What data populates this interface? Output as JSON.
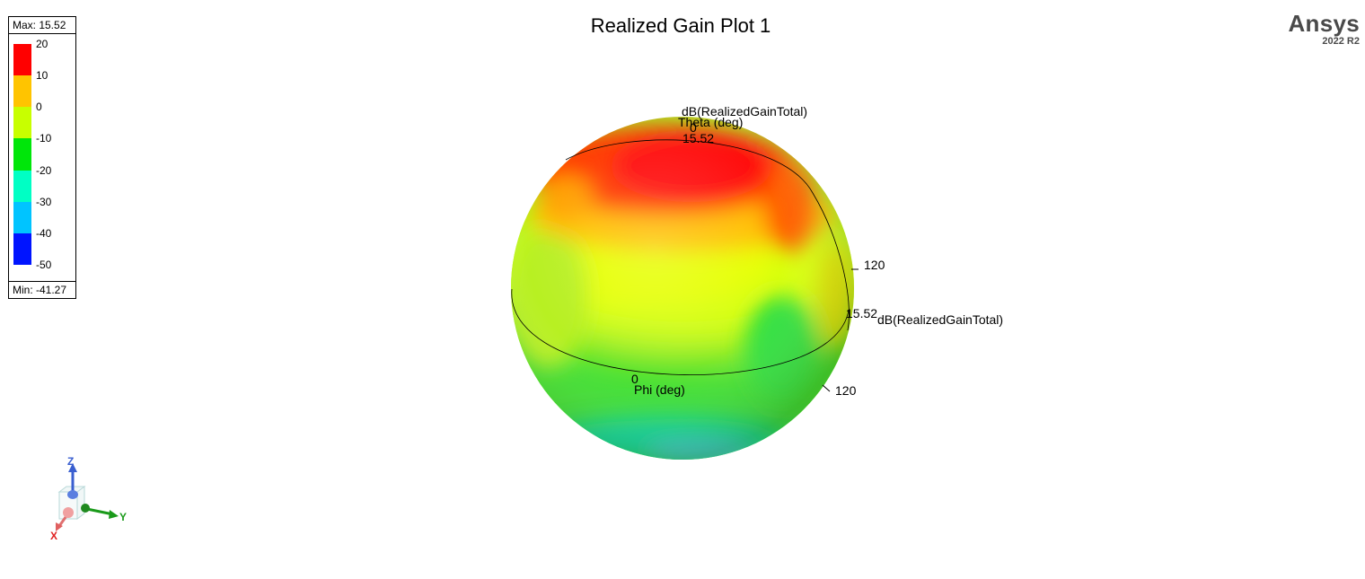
{
  "header": {
    "title": "Realized Gain Plot 1",
    "brand_name": "Ansys",
    "brand_version": "2022 R2"
  },
  "legend": {
    "max_label": "Max: 15.52",
    "min_label": "Min: -41.27",
    "ticks": [
      "20",
      "10",
      "0",
      "-10",
      "-20",
      "-30",
      "-40",
      "-50"
    ],
    "colors": [
      "#ff0000",
      "#ffc400",
      "#c8ff00",
      "#00e60a",
      "#00ffc4",
      "#00c4ff",
      "#0014ff"
    ]
  },
  "chart_data": {
    "type": "heatmap",
    "title": "Realized Gain Plot 1",
    "quantity": "dB(RealizedGainTotal)",
    "max": 15.52,
    "min": -41.27,
    "colorbar_ticks": [
      20,
      10,
      0,
      -10,
      -20,
      -30,
      -40,
      -50
    ],
    "axis_labels": {
      "theta": "Theta (deg)",
      "phi": "Phi (deg)",
      "radial": "dB(RealizedGainTotal)"
    },
    "annotations": {
      "theta_top_value": "0",
      "top_radius_value": "15.52",
      "side_radius_value": "15.52",
      "phi_zero": "0",
      "theta_120": "120",
      "phi_120": "120"
    }
  },
  "axes_triad": {
    "z_label": "Z",
    "y_label": "Y",
    "x_label": "X",
    "z_color": "#3a5fd0",
    "y_color": "#1a9a1a",
    "x_color": "#e02020"
  }
}
